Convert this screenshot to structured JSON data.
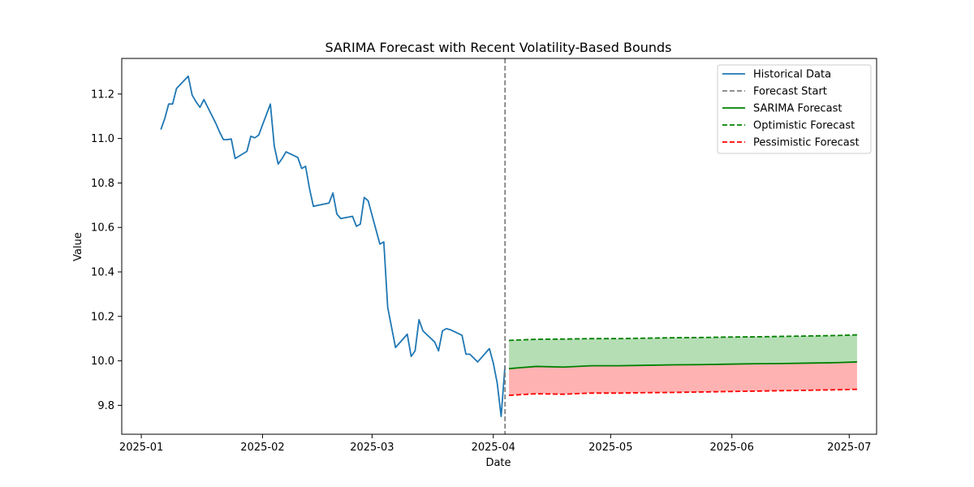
{
  "chart_data": {
    "type": "line",
    "title": "SARIMA Forecast with Recent Volatility-Based Bounds",
    "xlabel": "Date",
    "ylabel": "Value",
    "xlim": [
      "2024-12-27",
      "2025-07-08"
    ],
    "ylim": [
      9.67,
      11.36
    ],
    "x_ticks": [
      "2025-01-01",
      "2025-02-01",
      "2025-03-01",
      "2025-04-01",
      "2025-05-01",
      "2025-06-01",
      "2025-07-01"
    ],
    "x_tick_labels": [
      "2025-01",
      "2025-02",
      "2025-03",
      "2025-04",
      "2025-05",
      "2025-06",
      "2025-07"
    ],
    "y_ticks": [
      9.8,
      10.0,
      10.2,
      10.4,
      10.6,
      10.8,
      11.0,
      11.2
    ],
    "y_tick_labels": [
      "9.8",
      "10.0",
      "10.2",
      "10.4",
      "10.6",
      "10.8",
      "11.0",
      "11.2"
    ],
    "grid": false,
    "legend_position": "top-right",
    "forecast_start": "2025-04-04",
    "series": [
      {
        "name": "Historical Data",
        "color": "#1f77b4",
        "style": "solid",
        "points": [
          [
            "2025-01-06",
            11.04
          ],
          [
            "2025-01-07",
            11.09
          ],
          [
            "2025-01-08",
            11.155
          ],
          [
            "2025-01-09",
            11.155
          ],
          [
            "2025-01-10",
            11.225
          ],
          [
            "2025-01-13",
            11.28
          ],
          [
            "2025-01-14",
            11.195
          ],
          [
            "2025-01-15",
            11.165
          ],
          [
            "2025-01-16",
            11.14
          ],
          [
            "2025-01-17",
            11.175
          ],
          [
            "2025-01-20",
            11.07
          ],
          [
            "2025-01-21",
            11.03
          ],
          [
            "2025-01-22",
            10.995
          ],
          [
            "2025-01-23",
            10.995
          ],
          [
            "2025-01-24",
            10.998
          ],
          [
            "2025-01-25",
            10.91
          ],
          [
            "2025-01-28",
            10.942
          ],
          [
            "2025-01-29",
            11.01
          ],
          [
            "2025-01-30",
            11.003
          ],
          [
            "2025-01-31",
            11.015
          ],
          [
            "2025-02-03",
            11.155
          ],
          [
            "2025-02-04",
            10.965
          ],
          [
            "2025-02-05",
            10.885
          ],
          [
            "2025-02-06",
            10.91
          ],
          [
            "2025-02-07",
            10.94
          ],
          [
            "2025-02-10",
            10.915
          ],
          [
            "2025-02-11",
            10.865
          ],
          [
            "2025-02-12",
            10.875
          ],
          [
            "2025-02-13",
            10.775
          ],
          [
            "2025-02-14",
            10.695
          ],
          [
            "2025-02-18",
            10.71
          ],
          [
            "2025-02-19",
            10.755
          ],
          [
            "2025-02-20",
            10.66
          ],
          [
            "2025-02-21",
            10.64
          ],
          [
            "2025-02-24",
            10.65
          ],
          [
            "2025-02-25",
            10.605
          ],
          [
            "2025-02-26",
            10.615
          ],
          [
            "2025-02-27",
            10.735
          ],
          [
            "2025-02-28",
            10.72
          ],
          [
            "2025-03-03",
            10.525
          ],
          [
            "2025-03-04",
            10.535
          ],
          [
            "2025-03-05",
            10.24
          ],
          [
            "2025-03-07",
            10.06
          ],
          [
            "2025-03-10",
            10.12
          ],
          [
            "2025-03-11",
            10.02
          ],
          [
            "2025-03-12",
            10.045
          ],
          [
            "2025-03-13",
            10.185
          ],
          [
            "2025-03-14",
            10.135
          ],
          [
            "2025-03-17",
            10.085
          ],
          [
            "2025-03-18",
            10.045
          ],
          [
            "2025-03-19",
            10.135
          ],
          [
            "2025-03-20",
            10.145
          ],
          [
            "2025-03-21",
            10.14
          ],
          [
            "2025-03-24",
            10.115
          ],
          [
            "2025-03-25",
            10.03
          ],
          [
            "2025-03-26",
            10.03
          ],
          [
            "2025-03-28",
            9.995
          ],
          [
            "2025-03-31",
            10.055
          ],
          [
            "2025-04-01",
            9.99
          ],
          [
            "2025-04-02",
            9.9
          ],
          [
            "2025-04-03",
            9.75
          ],
          [
            "2025-04-04",
            9.98
          ]
        ]
      },
      {
        "name": "Forecast Start",
        "color": "#808080",
        "style": "dashed"
      },
      {
        "name": "SARIMA Forecast",
        "color": "#008000",
        "style": "solid",
        "points": [
          [
            "2025-04-05",
            9.965
          ],
          [
            "2025-04-12",
            9.975
          ],
          [
            "2025-04-19",
            9.972
          ],
          [
            "2025-04-26",
            9.978
          ],
          [
            "2025-05-03",
            9.978
          ],
          [
            "2025-05-10",
            9.98
          ],
          [
            "2025-05-17",
            9.982
          ],
          [
            "2025-05-24",
            9.983
          ],
          [
            "2025-05-31",
            9.985
          ],
          [
            "2025-06-07",
            9.987
          ],
          [
            "2025-06-14",
            9.988
          ],
          [
            "2025-06-21",
            9.99
          ],
          [
            "2025-06-28",
            9.992
          ],
          [
            "2025-07-03",
            9.995
          ]
        ]
      },
      {
        "name": "Optimistic Forecast",
        "color": "#008000",
        "style": "dashed",
        "points": [
          [
            "2025-04-05",
            10.092
          ],
          [
            "2025-04-12",
            10.097
          ],
          [
            "2025-04-19",
            10.098
          ],
          [
            "2025-04-26",
            10.1
          ],
          [
            "2025-05-03",
            10.1
          ],
          [
            "2025-05-10",
            10.102
          ],
          [
            "2025-05-17",
            10.104
          ],
          [
            "2025-05-24",
            10.105
          ],
          [
            "2025-05-31",
            10.107
          ],
          [
            "2025-06-07",
            10.108
          ],
          [
            "2025-06-14",
            10.11
          ],
          [
            "2025-06-21",
            10.112
          ],
          [
            "2025-06-28",
            10.114
          ],
          [
            "2025-07-03",
            10.117
          ]
        ]
      },
      {
        "name": "Pessimistic Forecast",
        "color": "#ff0000",
        "style": "dashed",
        "points": [
          [
            "2025-04-05",
            9.845
          ],
          [
            "2025-04-12",
            9.852
          ],
          [
            "2025-04-19",
            9.85
          ],
          [
            "2025-04-26",
            9.855
          ],
          [
            "2025-05-03",
            9.855
          ],
          [
            "2025-05-10",
            9.857
          ],
          [
            "2025-05-17",
            9.858
          ],
          [
            "2025-05-24",
            9.86
          ],
          [
            "2025-05-31",
            9.862
          ],
          [
            "2025-06-07",
            9.864
          ],
          [
            "2025-06-14",
            9.866
          ],
          [
            "2025-06-21",
            9.868
          ],
          [
            "2025-06-28",
            9.87
          ],
          [
            "2025-07-03",
            9.872
          ]
        ]
      }
    ],
    "bands": [
      {
        "name": "upper-band",
        "color": "#2ca02c",
        "opacity": 0.35,
        "lower": "SARIMA Forecast",
        "upper": "Optimistic Forecast"
      },
      {
        "name": "lower-band",
        "color": "#ff0000",
        "opacity": 0.3,
        "lower": "Pessimistic Forecast",
        "upper": "SARIMA Forecast"
      }
    ]
  }
}
